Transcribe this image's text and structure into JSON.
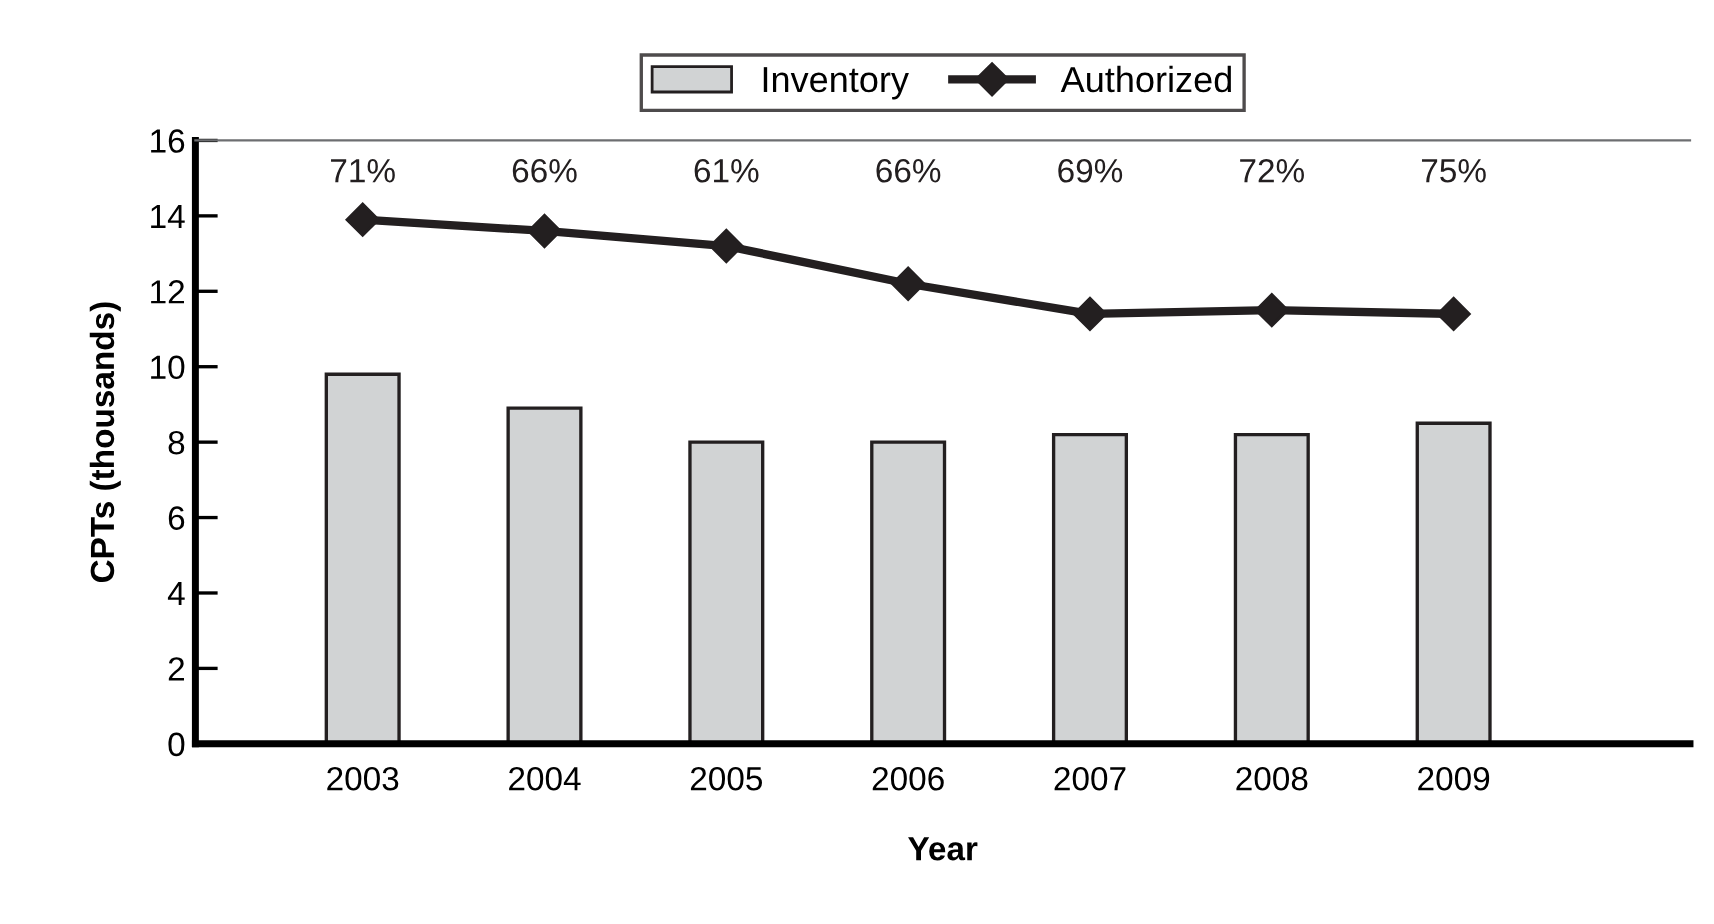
{
  "chart_data": {
    "type": "bar",
    "xlabel": "Year",
    "ylabel": "CPTs (thousands)",
    "categories": [
      "2003",
      "2004",
      "2005",
      "2006",
      "2007",
      "2008",
      "2009"
    ],
    "series": [
      {
        "name": "Inventory",
        "color": "#d1d3d4",
        "values": [
          9.8,
          8.9,
          8.0,
          8.0,
          8.2,
          8.2,
          8.5
        ]
      },
      {
        "name": "Authorized",
        "type": "line",
        "color": "#231f20",
        "marker": "diamond",
        "values": [
          13.9,
          13.6,
          13.2,
          12.2,
          11.4,
          11.5,
          11.4
        ]
      }
    ],
    "annotations": [
      "71%",
      "66%",
      "61%",
      "66%",
      "69%",
      "72%",
      "75%"
    ],
    "ylim": [
      0,
      16
    ],
    "yticks": [
      0,
      2,
      4,
      6,
      8,
      10,
      12,
      14,
      16
    ],
    "grid": false,
    "legend": "top"
  }
}
